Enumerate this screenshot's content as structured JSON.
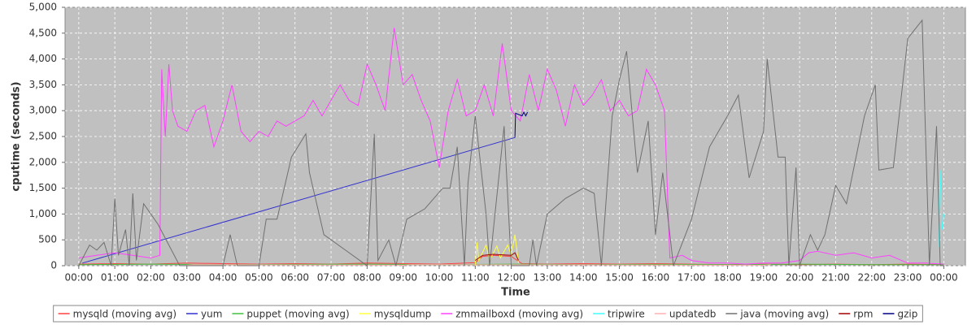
{
  "chart_data": {
    "type": "line",
    "x_label": "Time",
    "y_label": "cputime (seconds)",
    "xlim": [
      -0.38,
      24.6
    ],
    "ylim": [
      0,
      5000
    ],
    "grid": true,
    "legend": "bottom",
    "background": "#c0c0c0",
    "xticks": [
      {
        "value": 0,
        "label": "00:00"
      },
      {
        "value": 1,
        "label": "01:00"
      },
      {
        "value": 2,
        "label": "02:00"
      },
      {
        "value": 3,
        "label": "03:00"
      },
      {
        "value": 4,
        "label": "04:00"
      },
      {
        "value": 5,
        "label": "05:00"
      },
      {
        "value": 6,
        "label": "06:00"
      },
      {
        "value": 7,
        "label": "07:00"
      },
      {
        "value": 8,
        "label": "08:00"
      },
      {
        "value": 9,
        "label": "09:00"
      },
      {
        "value": 10,
        "label": "10:00"
      },
      {
        "value": 11,
        "label": "11:00"
      },
      {
        "value": 12,
        "label": "12:00"
      },
      {
        "value": 13,
        "label": "13:00"
      },
      {
        "value": 14,
        "label": "14:00"
      },
      {
        "value": 15,
        "label": "15:00"
      },
      {
        "value": 16,
        "label": "16:00"
      },
      {
        "value": 17,
        "label": "17:00"
      },
      {
        "value": 18,
        "label": "18:00"
      },
      {
        "value": 19,
        "label": "19:00"
      },
      {
        "value": 20,
        "label": "20:00"
      },
      {
        "value": 21,
        "label": "21:00"
      },
      {
        "value": 22,
        "label": "22:00"
      },
      {
        "value": 23,
        "label": "23:00"
      },
      {
        "value": 24,
        "label": "00:00"
      }
    ],
    "yticks": [
      0,
      500,
      {
        "value": 1000,
        "label": "1,000"
      },
      {
        "value": 1500,
        "label": "1,500"
      },
      {
        "value": 2000,
        "label": "2,000"
      },
      {
        "value": 2500,
        "label": "2,500"
      },
      {
        "value": 3000,
        "label": "3,000"
      },
      {
        "value": 3500,
        "label": "3,500"
      },
      {
        "value": 4000,
        "label": "4,000"
      },
      {
        "value": 4500,
        "label": "4,500"
      },
      {
        "value": 5000,
        "label": "5,000"
      }
    ],
    "series": [
      {
        "name": "mysqld (moving avg)",
        "color": "#ff4040",
        "x": [
          0,
          1,
          2,
          3,
          4,
          5,
          6,
          7,
          8,
          9,
          10,
          11,
          11.2,
          11.5,
          12,
          12.3,
          13,
          14,
          15,
          16,
          17,
          18,
          19,
          20,
          21,
          22,
          23,
          24
        ],
        "values": [
          30,
          40,
          30,
          50,
          40,
          30,
          40,
          30,
          50,
          40,
          30,
          60,
          180,
          200,
          180,
          40,
          30,
          40,
          30,
          40,
          30,
          20,
          30,
          20,
          30,
          20,
          30,
          20
        ]
      },
      {
        "name": "yum",
        "color": "#3030d0",
        "x": [
          0.1,
          12.1
        ],
        "values": [
          50,
          2480
        ]
      },
      {
        "name": "puppet (moving avg)",
        "color": "#40c040",
        "x": [
          0,
          2,
          4,
          6,
          8,
          10,
          12,
          14,
          16,
          18,
          20,
          22,
          24
        ],
        "values": [
          20,
          30,
          20,
          25,
          30,
          20,
          30,
          20,
          25,
          20,
          30,
          20,
          20
        ]
      },
      {
        "name": "mysqldump",
        "color": "#ffff40",
        "x": [
          11,
          11.05,
          11.1,
          11.3,
          11.4,
          11.6,
          11.7,
          11.9,
          12,
          12.1,
          12.2
        ],
        "values": [
          0,
          450,
          100,
          400,
          100,
          380,
          150,
          400,
          200,
          600,
          50
        ]
      },
      {
        "name": "zmmailboxd (moving avg)",
        "color": "#ff40ff",
        "x": [
          0,
          0.5,
          1,
          1.5,
          2,
          2.25,
          2.3,
          2.4,
          2.5,
          2.6,
          2.75,
          3,
          3.25,
          3.5,
          3.75,
          4,
          4.25,
          4.5,
          4.75,
          5,
          5.25,
          5.5,
          5.75,
          6,
          6.25,
          6.5,
          6.75,
          7,
          7.25,
          7.5,
          7.75,
          8,
          8.25,
          8.5,
          8.75,
          9,
          9.25,
          9.5,
          9.75,
          10,
          10.25,
          10.5,
          10.75,
          11,
          11.25,
          11.5,
          11.75,
          12,
          12.25,
          12.5,
          12.75,
          13,
          13.25,
          13.5,
          13.75,
          14,
          14.25,
          14.5,
          14.75,
          15,
          15.25,
          15.5,
          15.75,
          16,
          16.25,
          16.4,
          16.75,
          17,
          17.5,
          18,
          18.5,
          19,
          19.5,
          20,
          20.25,
          20.5,
          21,
          21.5,
          22,
          22.5,
          23,
          23.5,
          24
        ],
        "values": [
          150,
          200,
          250,
          200,
          150,
          200,
          3800,
          2500,
          3900,
          3000,
          2700,
          2600,
          3000,
          3100,
          2300,
          2800,
          3500,
          2600,
          2400,
          2600,
          2500,
          2800,
          2700,
          2800,
          2900,
          3200,
          2900,
          3200,
          3500,
          3200,
          3100,
          3900,
          3500,
          3000,
          4600,
          3500,
          3700,
          3200,
          2800,
          1900,
          3000,
          3600,
          2900,
          3000,
          3500,
          2900,
          4300,
          3000,
          2800,
          3700,
          3000,
          3800,
          3400,
          2700,
          3500,
          3100,
          3300,
          3600,
          3000,
          3200,
          2900,
          3000,
          3800,
          3500,
          3000,
          150,
          200,
          100,
          50,
          50,
          30,
          50,
          50,
          100,
          250,
          280,
          200,
          250,
          150,
          200,
          50,
          50,
          30
        ]
      },
      {
        "name": "tripwire",
        "color": "#40ffff",
        "x": [
          23.85,
          23.9,
          23.95,
          24
        ],
        "values": [
          350,
          1850,
          700,
          1000
        ]
      },
      {
        "name": "updatedb",
        "color": "#ffb0b0",
        "x": [
          3,
          3.2,
          9,
          9.2,
          19,
          19.2
        ],
        "values": [
          10,
          20,
          10,
          20,
          10,
          20
        ]
      },
      {
        "name": "java (moving avg)",
        "color": "#707070",
        "x": [
          0,
          0.3,
          0.5,
          0.7,
          0.9,
          1,
          1.1,
          1.3,
          1.4,
          1.5,
          1.6,
          1.8,
          2.2,
          2.8,
          4,
          4.2,
          4.4,
          5,
          5.2,
          5.5,
          5.9,
          6.3,
          6.4,
          6.8,
          7.4,
          8,
          8.2,
          8.3,
          8.6,
          8.8,
          9.1,
          9.6,
          10.1,
          10.3,
          10.5,
          10.7,
          10.8,
          11,
          11.3,
          11.4,
          11.8,
          12,
          12.5,
          12.6,
          12.7,
          13,
          13.5,
          14,
          14.3,
          14.5,
          14.8,
          15,
          15.2,
          15.5,
          15.8,
          16,
          16.2,
          16.5,
          17,
          17.5,
          18,
          18.3,
          18.6,
          19,
          19.1,
          19.4,
          19.6,
          19.7,
          19.9,
          20,
          20.3,
          20.5,
          20.7,
          21,
          21.3,
          21.8,
          22.1,
          22.2,
          22.6,
          23,
          23.4,
          23.6,
          23.8,
          23.9,
          24
        ],
        "values": [
          0,
          400,
          300,
          450,
          0,
          1300,
          200,
          700,
          0,
          1400,
          100,
          1200,
          800,
          0,
          0,
          600,
          0,
          0,
          900,
          900,
          2100,
          2550,
          1800,
          600,
          300,
          0,
          2550,
          100,
          500,
          0,
          900,
          1100,
          1500,
          1500,
          2300,
          0,
          1600,
          2900,
          1000,
          0,
          2700,
          0,
          0,
          500,
          0,
          1000,
          1300,
          1500,
          1400,
          0,
          2900,
          3600,
          4150,
          1800,
          2800,
          600,
          1800,
          0,
          900,
          2300,
          2900,
          3300,
          1700,
          2600,
          4000,
          2100,
          2100,
          0,
          1900,
          0,
          600,
          300,
          600,
          1550,
          1200,
          2900,
          3500,
          1850,
          1900,
          4400,
          4750,
          0,
          2700,
          0,
          0
        ]
      },
      {
        "name": "rpm",
        "color": "#a00000",
        "x": [
          11,
          11.2,
          11.5,
          12,
          12.1,
          12.2
        ],
        "values": [
          100,
          200,
          220,
          200,
          250,
          100
        ]
      },
      {
        "name": "gzip",
        "color": "#000080",
        "x": [
          12.1,
          12.12,
          12.3,
          12.35,
          12.4,
          12.45
        ],
        "values": [
          2480,
          2950,
          2900,
          2970,
          2900,
          2970
        ]
      }
    ]
  }
}
